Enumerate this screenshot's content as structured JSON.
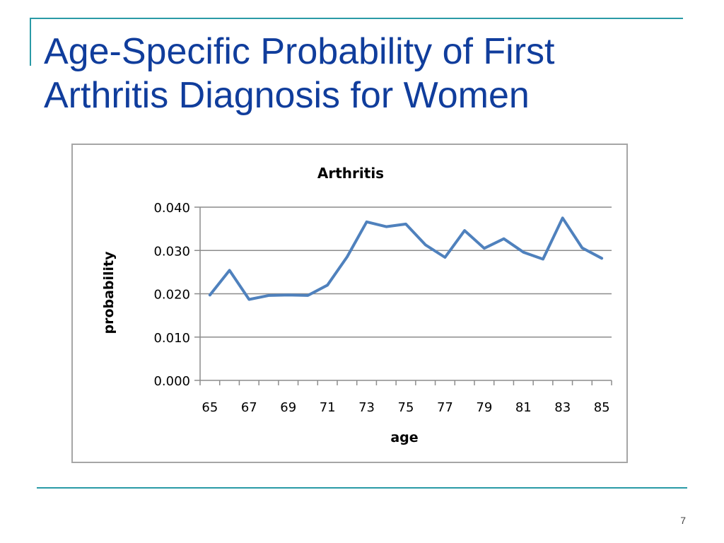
{
  "slide": {
    "title": "Age-Specific Probability of First Arthritis Diagnosis for Women",
    "page_number": "7",
    "accent_color": "#2a9aa6",
    "title_color": "#103d9c"
  },
  "chart_data": {
    "type": "line",
    "title": "Arthritis",
    "xlabel": "age",
    "ylabel": "probability",
    "x": [
      65,
      66,
      67,
      68,
      69,
      70,
      71,
      72,
      73,
      74,
      75,
      76,
      77,
      78,
      79,
      80,
      81,
      82,
      83,
      84,
      85
    ],
    "series": [
      {
        "values": [
          0.0197,
          0.0254,
          0.0187,
          0.0196,
          0.0197,
          0.0196,
          0.022,
          0.0285,
          0.0366,
          0.0355,
          0.0361,
          0.0313,
          0.0284,
          0.0346,
          0.0305,
          0.0327,
          0.0296,
          0.028,
          0.0375,
          0.0306,
          0.0282
        ],
        "color": "#4f81bd"
      }
    ],
    "ylim": [
      0,
      0.04
    ],
    "yticks": [
      "0.000",
      "0.010",
      "0.020",
      "0.030",
      "0.040"
    ],
    "xticks": [
      "65",
      "67",
      "69",
      "71",
      "73",
      "75",
      "77",
      "79",
      "81",
      "83",
      "85"
    ],
    "grid": "horizontal",
    "legend": "none"
  }
}
